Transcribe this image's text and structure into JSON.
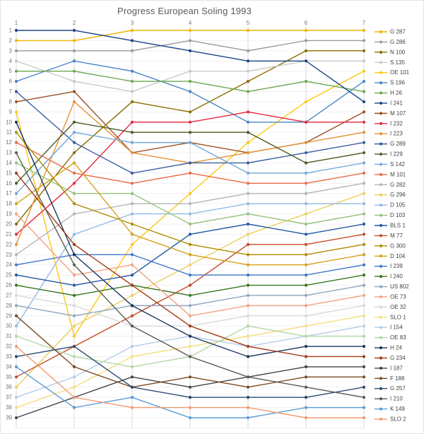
{
  "title": "Progress European Soling 1993",
  "chart_data": {
    "type": "line",
    "subtype": "bump-chart",
    "title": "Progress European Soling 1993",
    "xlabel": "",
    "ylabel": "",
    "x_axis_position": "top",
    "x": [
      1,
      2,
      3,
      4,
      5,
      6,
      7
    ],
    "x_tick_labels": [
      "1",
      "2",
      "3",
      "4",
      "5",
      "6",
      "7"
    ],
    "y_axis_inverted": true,
    "ylim": [
      1,
      39
    ],
    "y_tick_labels": [
      "1",
      "2",
      "3",
      "4",
      "5",
      "6",
      "7",
      "8",
      "9",
      "10",
      "11",
      "12",
      "13",
      "14",
      "15",
      "16",
      "17",
      "18",
      "19",
      "20",
      "21",
      "22",
      "23",
      "24",
      "25",
      "26",
      "27",
      "28",
      "29",
      "30",
      "31",
      "32",
      "33",
      "34",
      "35",
      "36",
      "37",
      "38",
      "39"
    ],
    "grid": true,
    "legend_position": "right",
    "series": [
      {
        "name": "G 287",
        "color": "#f1b500",
        "positions": [
          2,
          2,
          1,
          1,
          1,
          1,
          1
        ]
      },
      {
        "name": "G 286",
        "color": "#9a9a9a",
        "positions": [
          3,
          3,
          3,
          2,
          3,
          2,
          2
        ]
      },
      {
        "name": "N 100",
        "color": "#8a6d00",
        "positions": [
          20,
          13,
          8,
          9,
          6,
          3,
          3
        ]
      },
      {
        "name": "S 135",
        "color": "#c9c9c9",
        "positions": [
          4,
          6,
          7,
          5,
          5,
          4,
          4
        ]
      },
      {
        "name": "OE 101",
        "color": "#ffc612",
        "positions": [
          9,
          31,
          22,
          17,
          12,
          8,
          5
        ]
      },
      {
        "name": "S 196",
        "color": "#4a86c6",
        "positions": [
          6,
          4,
          5,
          7,
          10,
          10,
          6
        ]
      },
      {
        "name": "H 26",
        "color": "#6aa84f",
        "positions": [
          5,
          5,
          6,
          6,
          7,
          6,
          7
        ]
      },
      {
        "name": "I 241",
        "color": "#1c4587",
        "positions": [
          1,
          1,
          2,
          3,
          4,
          4,
          8
        ]
      },
      {
        "name": "M 107",
        "color": "#9a5223",
        "positions": [
          8,
          7,
          13,
          12,
          13,
          12,
          9
        ]
      },
      {
        "name": "I 232",
        "color": "#e8273f",
        "positions": [
          21,
          16,
          10,
          10,
          9,
          10,
          10
        ]
      },
      {
        "name": "I 223",
        "color": "#e69138",
        "positions": [
          22,
          8,
          13,
          14,
          13,
          12,
          11
        ]
      },
      {
        "name": "G 289",
        "color": "#3a5ba0",
        "positions": [
          7,
          12,
          15,
          14,
          14,
          13,
          12
        ]
      },
      {
        "name": "I 229",
        "color": "#4a5d23",
        "positions": [
          16,
          10,
          11,
          11,
          11,
          14,
          13
        ]
      },
      {
        "name": "S 142",
        "color": "#74a7dc",
        "positions": [
          17,
          11,
          12,
          12,
          15,
          15,
          14
        ]
      },
      {
        "name": "M 101",
        "color": "#ea6a45",
        "positions": [
          12,
          15,
          16,
          15,
          16,
          16,
          15
        ]
      },
      {
        "name": "G 282",
        "color": "#b5b5b5",
        "positions": [
          23,
          19,
          18,
          18,
          17,
          17,
          16
        ]
      },
      {
        "name": "G 296",
        "color": "#edcf5e",
        "positions": [
          36,
          30,
          27,
          24,
          21,
          19,
          17
        ]
      },
      {
        "name": "D 105",
        "color": "#93b9e6",
        "positions": [
          30,
          21,
          19,
          19,
          18,
          18,
          18
        ]
      },
      {
        "name": "D 103",
        "color": "#93c47d",
        "positions": [
          14,
          17,
          17,
          20,
          19,
          20,
          19
        ]
      },
      {
        "name": "BLS 1",
        "color": "#2457a4",
        "positions": [
          25,
          26,
          25,
          21,
          20,
          21,
          20
        ]
      },
      {
        "name": "M 77",
        "color": "#c44b26",
        "positions": [
          35,
          32,
          29,
          26,
          22,
          22,
          21
        ]
      },
      {
        "name": "G 300",
        "color": "#b08c00",
        "positions": [
          11,
          18,
          20,
          22,
          23,
          23,
          22
        ]
      },
      {
        "name": "D 104",
        "color": "#d4a017",
        "positions": [
          18,
          14,
          21,
          23,
          24,
          24,
          23
        ]
      },
      {
        "name": "I 239",
        "color": "#3e76c9",
        "positions": [
          24,
          23,
          23,
          25,
          25,
          25,
          24
        ]
      },
      {
        "name": "I 240",
        "color": "#38761d",
        "positions": [
          26,
          27,
          26,
          27,
          26,
          26,
          25
        ]
      },
      {
        "name": "US 802",
        "color": "#8ca6c0",
        "positions": [
          28,
          29,
          28,
          28,
          27,
          27,
          26
        ]
      },
      {
        "name": "OE 73",
        "color": "#f2a285",
        "positions": [
          19,
          25,
          24,
          29,
          28,
          28,
          27
        ]
      },
      {
        "name": "OE 32",
        "color": "#d8d8d8",
        "positions": [
          27,
          28,
          30,
          30,
          29,
          29,
          28
        ]
      },
      {
        "name": "SLO 1",
        "color": "#f3de7e",
        "positions": [
          38,
          36,
          33,
          32,
          31,
          30,
          29
        ]
      },
      {
        "name": "I 154",
        "color": "#b3cde8",
        "positions": [
          37,
          35,
          32,
          31,
          32,
          31,
          30
        ]
      },
      {
        "name": "OE 83",
        "color": "#b5d6a3",
        "positions": [
          31,
          33,
          34,
          33,
          30,
          31,
          31
        ]
      },
      {
        "name": "H 24",
        "color": "#17365d",
        "positions": [
          10,
          23,
          28,
          31,
          33,
          32,
          32
        ]
      },
      {
        "name": "G 234",
        "color": "#a33b17",
        "positions": [
          15,
          22,
          26,
          30,
          32,
          33,
          33
        ]
      },
      {
        "name": "I 187",
        "color": "#454545",
        "positions": [
          39,
          37,
          35,
          36,
          35,
          34,
          34
        ]
      },
      {
        "name": "F 188",
        "color": "#7b4a22",
        "positions": [
          29,
          34,
          36,
          35,
          36,
          35,
          35
        ]
      },
      {
        "name": "G 257",
        "color": "#2c4a73",
        "positions": [
          33,
          32,
          36,
          37,
          37,
          37,
          36
        ]
      },
      {
        "name": "I 210",
        "color": "#5c5c54",
        "positions": [
          13,
          24,
          30,
          33,
          35,
          36,
          37
        ]
      },
      {
        "name": "K 149",
        "color": "#5b9bd5",
        "positions": [
          34,
          38,
          37,
          39,
          39,
          38,
          38
        ]
      },
      {
        "name": "SLO 2",
        "color": "#f09a70",
        "positions": [
          32,
          37,
          38,
          38,
          38,
          39,
          39
        ]
      }
    ]
  }
}
